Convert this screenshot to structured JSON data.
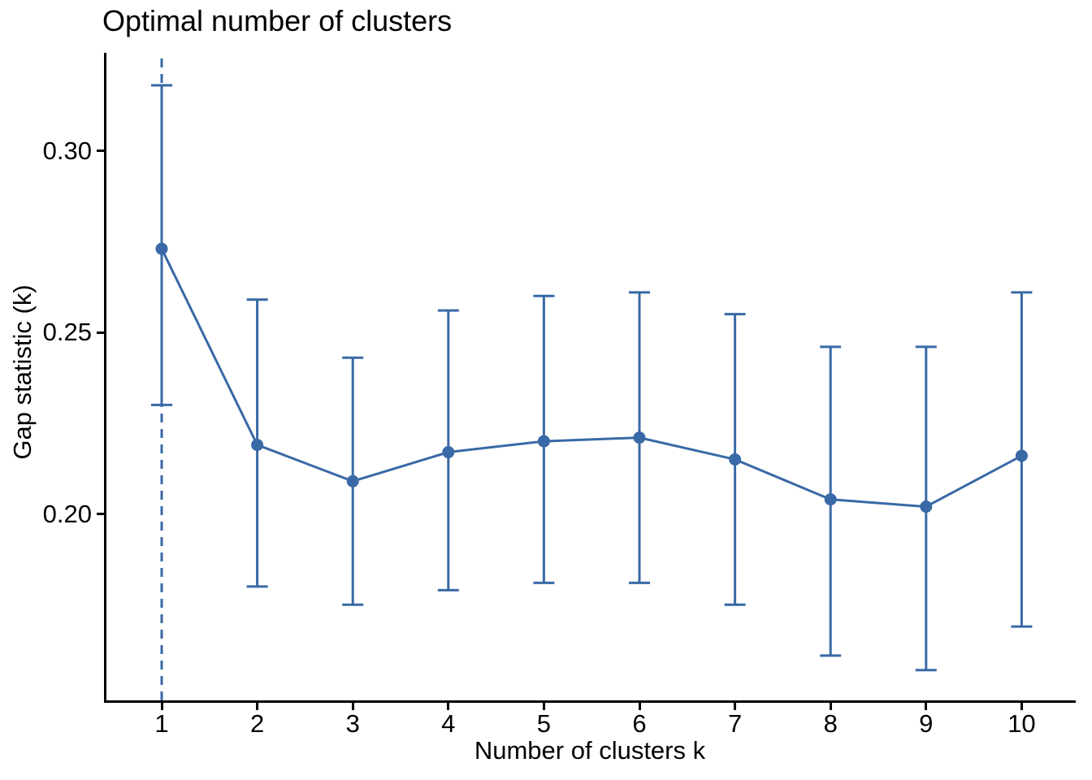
{
  "page": {
    "background": "#ffffff"
  },
  "colors": {
    "series": "#3969A6",
    "axis": "#000000",
    "text": "#000000",
    "background": "#ffffff"
  },
  "chart_data": {
    "type": "line",
    "title": "Optimal number of clusters",
    "xlabel": "Number of clusters k",
    "ylabel": "Gap statistic (k)",
    "x": [
      1,
      2,
      3,
      4,
      5,
      6,
      7,
      8,
      9,
      10
    ],
    "gap": [
      0.273,
      0.219,
      0.209,
      0.217,
      0.22,
      0.221,
      0.215,
      0.204,
      0.202,
      0.216
    ],
    "gap_lower": [
      0.23,
      0.18,
      0.175,
      0.179,
      0.181,
      0.181,
      0.175,
      0.161,
      0.157,
      0.169
    ],
    "gap_upper": [
      0.318,
      0.259,
      0.243,
      0.256,
      0.26,
      0.261,
      0.255,
      0.246,
      0.246,
      0.261
    ],
    "error_bars": true,
    "point_shape": "circle",
    "dashed_vline_x": 1,
    "x_ticks": [
      1,
      2,
      3,
      4,
      5,
      6,
      7,
      8,
      9,
      10
    ],
    "x_tick_labels": [
      "1",
      "2",
      "3",
      "4",
      "5",
      "6",
      "7",
      "8",
      "9",
      "10"
    ],
    "y_ticks": [
      0.2,
      0.25,
      0.3
    ],
    "y_tick_labels": [
      "0.20",
      "0.25",
      "0.30"
    ],
    "xlim": [
      0.4,
      10.6
    ],
    "ylim": [
      0.15,
      0.327
    ],
    "grid": false,
    "legend": "none"
  }
}
